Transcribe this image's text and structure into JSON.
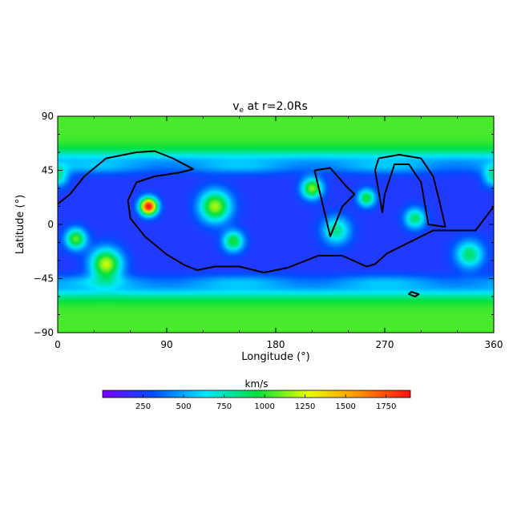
{
  "chart_data": {
    "type": "heatmap",
    "title": "v",
    "title_subscript": "e",
    "title_suffix": " at r=2.0Rs",
    "xlabel": "Longitude (°)",
    "ylabel": "Latitude (°)",
    "xlim": [
      0,
      360
    ],
    "ylim": [
      -90,
      90
    ],
    "x_ticks": [
      0,
      90,
      180,
      270,
      360
    ],
    "x_tick_labels": [
      "0",
      "90",
      "180",
      "270",
      "360"
    ],
    "y_ticks": [
      90,
      45,
      0,
      -45,
      -90
    ],
    "y_tick_labels": [
      "90",
      "45",
      "0",
      "−45",
      "−90"
    ],
    "colorbar": {
      "label": "km/s",
      "range": [
        0,
        1900
      ],
      "ticks": [
        250,
        500,
        750,
        1000,
        1250,
        1500,
        1750
      ],
      "tick_labels": [
        "250",
        "500",
        "750",
        "1000",
        "1250",
        "1500",
        "1750"
      ],
      "colormap": [
        "#7a00ff",
        "#0050ff",
        "#00e8ff",
        "#00e040",
        "#e8ff00",
        "#ff9000",
        "#ff1010"
      ]
    },
    "field": {
      "background_km_s": 230,
      "polar_band_km_s": 1050,
      "polar_band_lat_north": 57,
      "polar_band_lat_south": -57,
      "spots": [
        {
          "lon": 75,
          "lat": 15,
          "amp": 1700,
          "sigma": 5
        },
        {
          "lon": 130,
          "lat": 15,
          "amp": 950,
          "sigma": 9
        },
        {
          "lon": 40,
          "lat": -33,
          "amp": 1000,
          "sigma": 9
        },
        {
          "lon": 15,
          "lat": -12,
          "amp": 850,
          "sigma": 6
        },
        {
          "lon": 145,
          "lat": -14,
          "amp": 750,
          "sigma": 6
        },
        {
          "lon": 210,
          "lat": 30,
          "amp": 900,
          "sigma": 6
        },
        {
          "lon": 255,
          "lat": 22,
          "amp": 750,
          "sigma": 5
        },
        {
          "lon": 230,
          "lat": -5,
          "amp": 600,
          "sigma": 8
        },
        {
          "lon": 295,
          "lat": 5,
          "amp": 650,
          "sigma": 6
        },
        {
          "lon": 340,
          "lat": -25,
          "amp": 650,
          "sigma": 8
        },
        {
          "lon": 360,
          "lat": 40,
          "amp": 550,
          "sigma": 6
        }
      ]
    },
    "neutral_line": [
      {
        "points": [
          [
            0,
            17
          ],
          [
            10,
            25
          ],
          [
            22,
            40
          ],
          [
            40,
            55
          ],
          [
            65,
            60
          ],
          [
            80,
            61
          ],
          [
            95,
            55
          ],
          [
            112,
            46
          ],
          [
            100,
            43
          ],
          [
            80,
            40
          ],
          [
            65,
            35
          ],
          [
            58,
            20
          ],
          [
            60,
            5
          ],
          [
            72,
            -10
          ],
          [
            90,
            -25
          ],
          [
            105,
            -34
          ],
          [
            115,
            -38
          ],
          [
            130,
            -35
          ],
          [
            150,
            -35
          ],
          [
            170,
            -40
          ],
          [
            190,
            -36
          ],
          [
            215,
            -26
          ],
          [
            235,
            -26
          ],
          [
            255,
            -35
          ],
          [
            262,
            -33
          ],
          [
            272,
            -24
          ],
          [
            290,
            -15
          ],
          [
            310,
            -5
          ],
          [
            330,
            -5
          ],
          [
            345,
            -5
          ],
          [
            360,
            15
          ]
        ]
      },
      {
        "points": [
          [
            212,
            45
          ],
          [
            225,
            47
          ],
          [
            238,
            32
          ],
          [
            245,
            25
          ],
          [
            235,
            15
          ],
          [
            225,
            -10
          ],
          [
            218,
            20
          ],
          [
            212,
            45
          ]
        ]
      },
      {
        "points": [
          [
            265,
            55
          ],
          [
            282,
            58
          ],
          [
            300,
            55
          ],
          [
            310,
            40
          ],
          [
            315,
            20
          ],
          [
            320,
            -2
          ],
          [
            306,
            0
          ],
          [
            300,
            35
          ],
          [
            290,
            50
          ],
          [
            278,
            50
          ],
          [
            270,
            25
          ],
          [
            268,
            10
          ],
          [
            262,
            45
          ],
          [
            265,
            55
          ]
        ]
      },
      {
        "points": [
          [
            292,
            -56
          ],
          [
            298,
            -58
          ],
          [
            295,
            -60
          ],
          [
            290,
            -58
          ],
          [
            292,
            -56
          ]
        ]
      }
    ]
  }
}
